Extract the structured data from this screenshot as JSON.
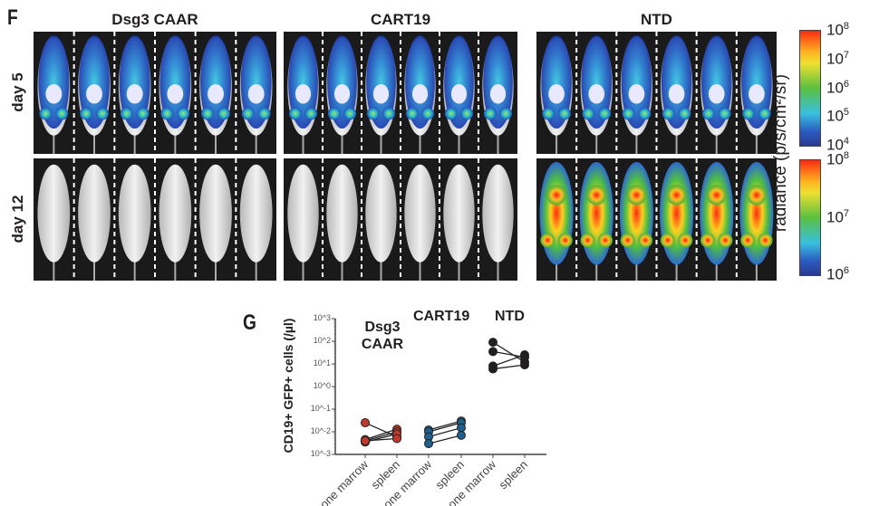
{
  "panel_f": {
    "label": "F",
    "groups": [
      "Dsg3 CAAR",
      "CART19",
      "NTD"
    ],
    "rows": [
      "day 5",
      "day 12"
    ],
    "colorbar_label": "radiance (p/s/cm²/sr)",
    "colorbar_day5": {
      "min_label": "10",
      "ticks": [
        {
          "base": "10",
          "exp": "8"
        },
        {
          "base": "10",
          "exp": "7"
        },
        {
          "base": "10",
          "exp": "6"
        },
        {
          "base": "10",
          "exp": "5"
        },
        {
          "base": "10",
          "exp": "4"
        }
      ]
    },
    "colorbar_day12": {
      "ticks": [
        {
          "base": "10",
          "exp": "8"
        },
        {
          "base": "10",
          "exp": "7"
        },
        {
          "base": "10",
          "exp": "6"
        }
      ]
    },
    "signal_levels": {
      "day5": [
        "low",
        "low",
        "low"
      ],
      "day12": [
        "none",
        "none",
        "high"
      ]
    }
  },
  "chart_data": {
    "type": "scatter",
    "panel_label": "G",
    "ylabel": "CD19+ GFP+ cells (/µl)",
    "yscale": "log",
    "ylim": [
      0.001,
      1000
    ],
    "ytick_labels": [
      "10^-3",
      "10^-2",
      "10^-1",
      "10^0",
      "10^1",
      "10^2",
      "10^3"
    ],
    "group_labels": [
      "Dsg3 CAAR",
      "CART19",
      "NTD"
    ],
    "categories": [
      "bone marrow",
      "spleen",
      "bone marrow",
      "spleen",
      "bone marrow",
      "spleen"
    ],
    "series": [
      {
        "group": "Dsg3 CAAR",
        "color": "#c0392b",
        "pairs": [
          [
            0.025,
            0.006
          ],
          [
            0.0045,
            0.013
          ],
          [
            0.004,
            0.01
          ],
          [
            0.0035,
            0.008
          ],
          [
            0.004,
            0.005
          ]
        ]
      },
      {
        "group": "CART19",
        "color": "#1f5f8b",
        "pairs": [
          [
            0.012,
            0.03
          ],
          [
            0.01,
            0.025
          ],
          [
            0.006,
            0.015
          ],
          [
            0.003,
            0.007
          ]
        ]
      },
      {
        "group": "NTD",
        "color": "#231f20",
        "pairs": [
          [
            90,
            12
          ],
          [
            35,
            20
          ],
          [
            8,
            25
          ],
          [
            6,
            9
          ]
        ]
      }
    ]
  }
}
